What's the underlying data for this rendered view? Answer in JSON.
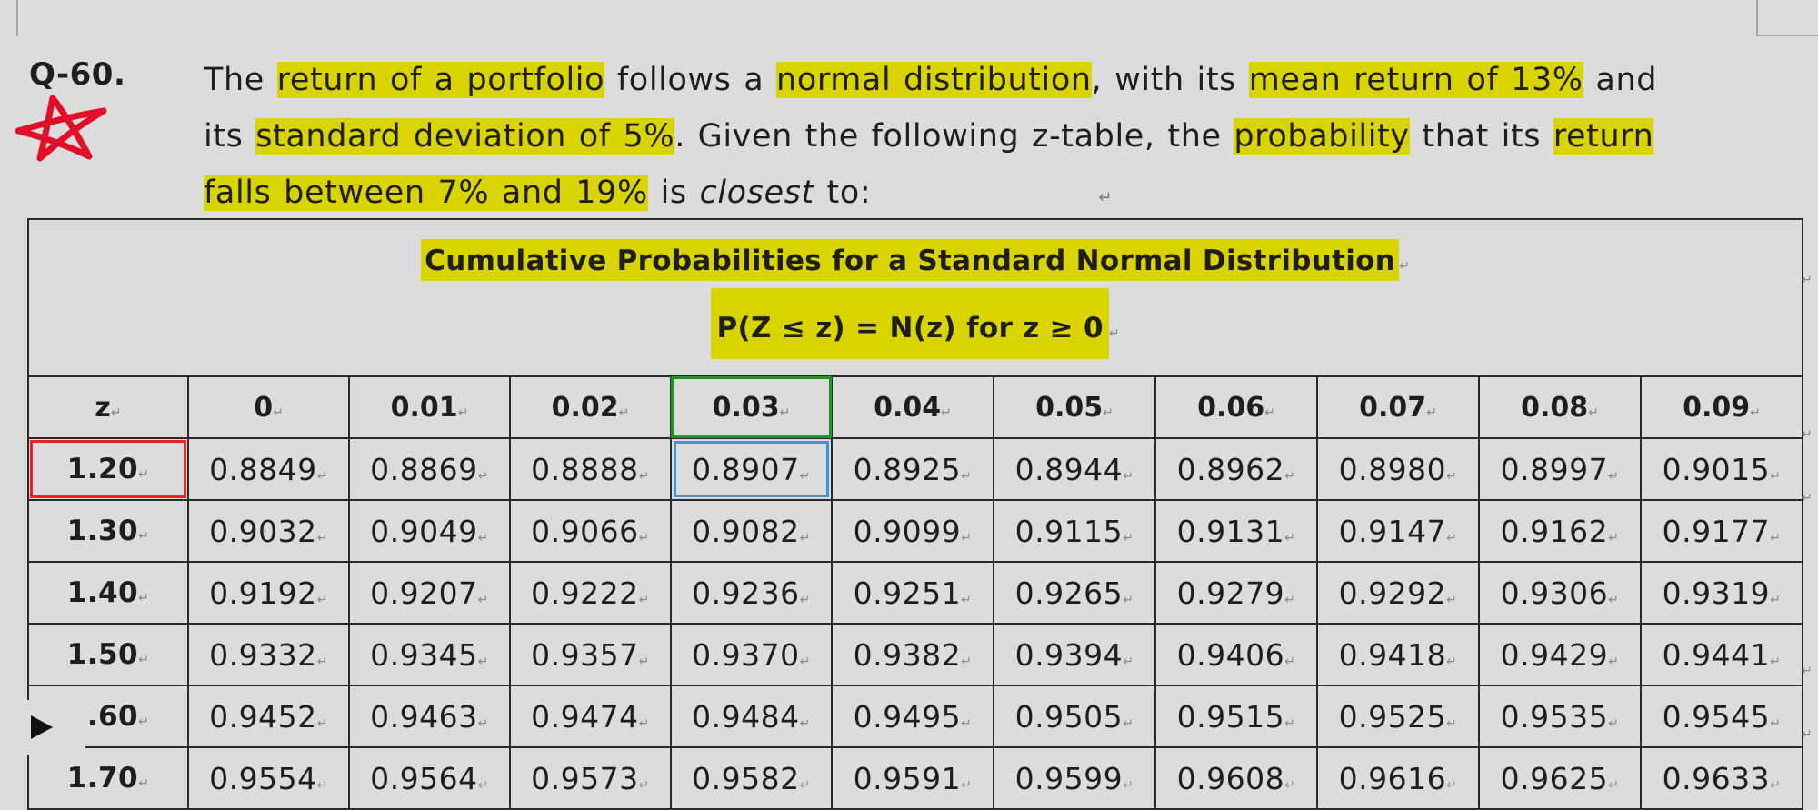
{
  "question": {
    "number": "Q-60.",
    "lines": [
      [
        {
          "text": "The ",
          "hl": false
        },
        {
          "text": "return of a portfolio",
          "hl": true
        },
        {
          "text": " follows a ",
          "hl": false
        },
        {
          "text": "normal distribution",
          "hl": true
        },
        {
          "text": ", with its ",
          "hl": false
        },
        {
          "text": "mean return of 13%",
          "hl": true
        },
        {
          "text": " and",
          "hl": false
        }
      ],
      [
        {
          "text": "its ",
          "hl": false
        },
        {
          "text": "standard deviation of 5%",
          "hl": true
        },
        {
          "text": ". Given the following z-table, the ",
          "hl": false
        },
        {
          "text": "probability",
          "hl": true
        },
        {
          "text": " that its ",
          "hl": false
        },
        {
          "text": "return",
          "hl": true
        }
      ],
      [
        {
          "text": "falls between 7% and 19%",
          "hl": true
        },
        {
          "text": " is ",
          "hl": false
        },
        {
          "text": "closest",
          "hl": false,
          "italic": true
        },
        {
          "text": " to:",
          "hl": false
        }
      ]
    ]
  },
  "table": {
    "title": "Cumulative Probabilities for a Standard Normal Distribution",
    "subtitle": "P(Z  ≤  z) = N(z) for z  ≥  0",
    "columns": [
      "z",
      "0",
      "0.01",
      "0.02",
      "0.03",
      "0.04",
      "0.05",
      "0.06",
      "0.07",
      "0.08",
      "0.09"
    ],
    "rows": [
      [
        "1.20",
        "0.8849",
        "0.8869",
        "0.8888",
        "0.8907",
        "0.8925",
        "0.8944",
        "0.8962",
        "0.8980",
        "0.8997",
        "0.9015"
      ],
      [
        "1.30",
        "0.9032",
        "0.9049",
        "0.9066",
        "0.9082",
        "0.9099",
        "0.9115",
        "0.9131",
        "0.9147",
        "0.9162",
        "0.9177"
      ],
      [
        "1.40",
        "0.9192",
        "0.9207",
        "0.9222",
        "0.9236",
        "0.9251",
        "0.9265",
        "0.9279",
        "0.9292",
        "0.9306",
        "0.9319"
      ],
      [
        "1.50",
        "0.9332",
        "0.9345",
        "0.9357",
        "0.9370",
        "0.9382",
        "0.9394",
        "0.9406",
        "0.9418",
        "0.9429",
        "0.9441"
      ],
      [
        "1.60",
        "0.9452",
        "0.9463",
        "0.9474",
        "0.9484",
        "0.9495",
        "0.9505",
        "0.9515",
        "0.9525",
        "0.9535",
        "0.9545"
      ],
      [
        "1.70",
        "0.9554",
        "0.9564",
        "0.9573",
        "0.9582",
        "0.9591",
        "0.9599",
        "0.9608",
        "0.9616",
        "0.9625",
        "0.9633"
      ]
    ]
  },
  "annotations": {
    "highlight_color": "#d9d400",
    "red_box": "z = 1.20",
    "green_box": "column 0.03",
    "blue_box": "0.8907",
    "star_icon": "red-star-icon",
    "star_color": "#e0102a"
  },
  "player": {
    "icon": "play-icon"
  }
}
